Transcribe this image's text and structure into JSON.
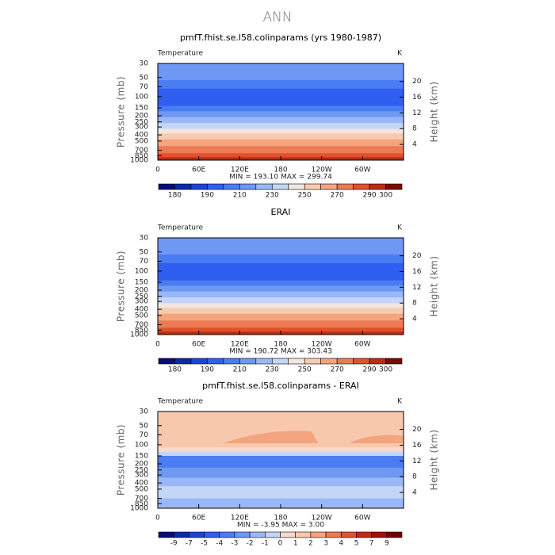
{
  "title": "ANN",
  "panels": [
    {
      "title": "pmfT.fhist.se.l58.colinparams (yrs 1980-1987)",
      "left_label": "Temperature",
      "right_label": "K",
      "y_label": "Pressure (mb)",
      "y2_label": "Height (km)",
      "log_y": true,
      "ylim": [
        1000,
        30
      ],
      "yticks": [
        30,
        50,
        70,
        100,
        150,
        200,
        250,
        300,
        400,
        500,
        700,
        850,
        1000
      ],
      "y2ticks": [
        4,
        8,
        12,
        16,
        20
      ],
      "xlim": [
        0,
        360
      ],
      "xticks": [
        0,
        {
          "value": 60,
          "label": "60E"
        },
        {
          "value": 120,
          "label": "120E"
        },
        180,
        {
          "value": 240,
          "label": "120W"
        },
        {
          "value": 300,
          "label": "60W"
        }
      ],
      "stats": "MIN = 193.10   MAX = 299.74",
      "colorbar": {
        "levels": [
          180,
          null,
          190,
          null,
          210,
          null,
          230,
          null,
          250,
          null,
          270,
          null,
          290,
          300
        ],
        "colors": [
          "#0b0b78",
          "#0a2aa8",
          "#1c45d8",
          "#2f5ff0",
          "#4a7cf2",
          "#6e98f4",
          "#9ab8f6",
          "#c4d6f8",
          "#f2e6e0",
          "#f8cbb0",
          "#f4a47e",
          "#ec7a52",
          "#e0512e",
          "#c02a12",
          "#7a0a04"
        ]
      }
    },
    {
      "title": "ERAI",
      "left_label": "Temperature",
      "right_label": "K",
      "y_label": "Pressure (mb)",
      "y2_label": "Height (km)",
      "log_y": true,
      "ylim": [
        1000,
        30
      ],
      "yticks": [
        30,
        50,
        70,
        100,
        150,
        200,
        250,
        300,
        400,
        500,
        700,
        850,
        1000
      ],
      "y2ticks": [
        4,
        8,
        12,
        16,
        20
      ],
      "xlim": [
        0,
        360
      ],
      "xticks": [
        0,
        {
          "value": 60,
          "label": "60E"
        },
        {
          "value": 120,
          "label": "120E"
        },
        180,
        {
          "value": 240,
          "label": "120W"
        },
        {
          "value": 300,
          "label": "60W"
        }
      ],
      "stats": "MIN = 190.72   MAX = 303.43",
      "colorbar": {
        "levels": [
          180,
          null,
          190,
          null,
          210,
          null,
          230,
          null,
          250,
          null,
          270,
          null,
          290,
          300
        ],
        "colors": [
          "#0b0b78",
          "#0a2aa8",
          "#1c45d8",
          "#2f5ff0",
          "#4a7cf2",
          "#6e98f4",
          "#9ab8f6",
          "#c4d6f8",
          "#f2e6e0",
          "#f8cbb0",
          "#f4a47e",
          "#ec7a52",
          "#e0512e",
          "#c02a12",
          "#7a0a04"
        ]
      }
    },
    {
      "title": "pmfT.fhist.se.l58.colinparams - ERAI",
      "left_label": "Temperature",
      "right_label": "K",
      "y_label": "Pressure (mb)",
      "y2_label": "Height (km)",
      "log_y": true,
      "ylim": [
        1000,
        30
      ],
      "yticks": [
        30,
        50,
        70,
        100,
        150,
        200,
        250,
        300,
        400,
        500,
        700,
        850,
        1000
      ],
      "y2ticks": [
        4,
        8,
        12,
        16,
        20
      ],
      "xlim": [
        0,
        360
      ],
      "xticks": [
        0,
        {
          "value": 60,
          "label": "60E"
        },
        {
          "value": 120,
          "label": "120E"
        },
        180,
        {
          "value": 240,
          "label": "120W"
        },
        {
          "value": 300,
          "label": "60W"
        }
      ],
      "stats": "MIN =   -3.95   MAX =    3.00",
      "colorbar": {
        "levels": [
          -9,
          -7,
          -5,
          -4,
          -3,
          -2,
          -1,
          0,
          1,
          2,
          3,
          4,
          5,
          7,
          9
        ],
        "colors": [
          "#0b0b78",
          "#0a2aa8",
          "#1c45d8",
          "#2f5ff0",
          "#4a7cf2",
          "#6e98f4",
          "#9ab8f6",
          "#c4d6f8",
          "#f8d8c8",
          "#f8c8ac",
          "#f4a47e",
          "#ec7a52",
          "#e0512e",
          "#c02a12",
          "#a01008",
          "#700000"
        ]
      }
    }
  ]
}
